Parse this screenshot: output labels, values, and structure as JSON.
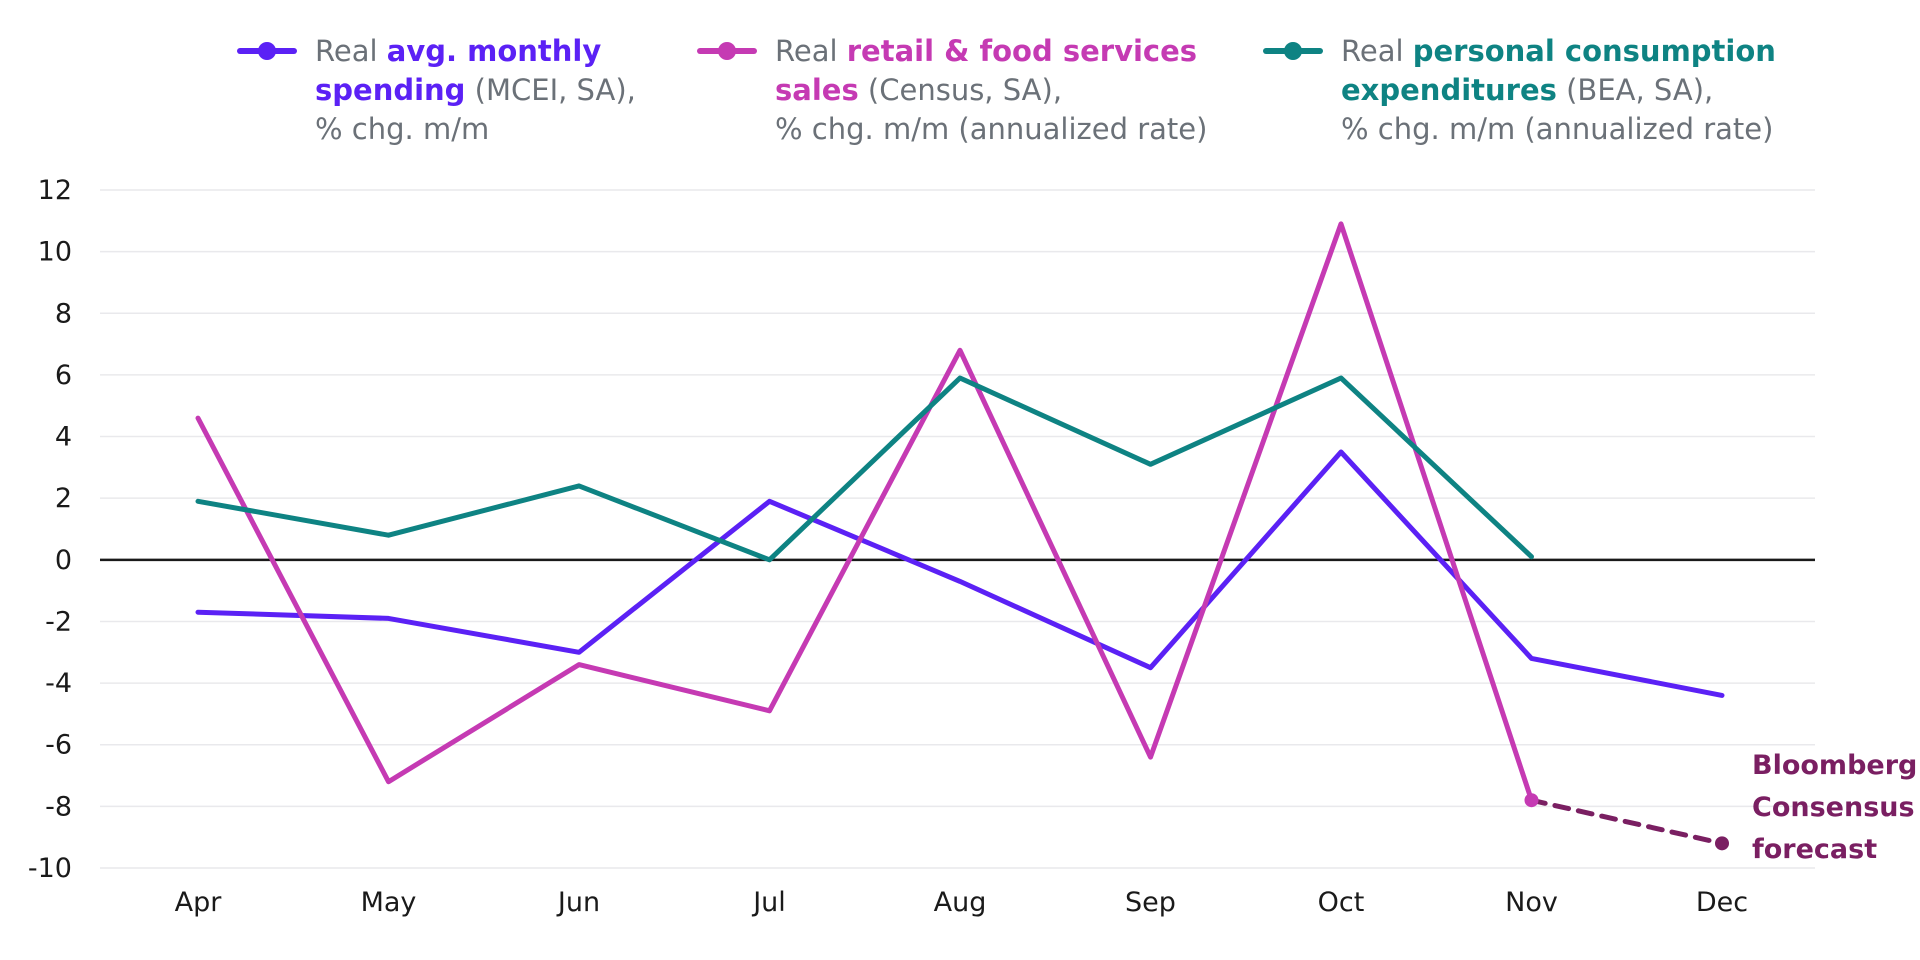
{
  "chart_data": {
    "type": "line",
    "categories": [
      "Apr",
      "May",
      "Jun",
      "Jul",
      "Aug",
      "Sep",
      "Oct",
      "Nov",
      "Dec"
    ],
    "ylim": [
      -10,
      12
    ],
    "yticks": [
      12,
      10,
      8,
      6,
      4,
      2,
      0,
      -2,
      -4,
      -6,
      -8,
      -10
    ],
    "grid": "horizontal",
    "legend_position": "top",
    "series": [
      {
        "key": "mcei",
        "color": "#5b21f5",
        "legend": {
          "lines": [
            [
              {
                "text": "Real ",
                "bold": false,
                "accent": false
              },
              {
                "text": "avg. monthly",
                "bold": true,
                "accent": true
              }
            ],
            [
              {
                "text": "spending",
                "bold": true,
                "accent": true
              },
              {
                "text": " (MCEI, SA),",
                "bold": false,
                "accent": false
              }
            ],
            [
              {
                "text": "% chg. m/m",
                "bold": false,
                "accent": false
              }
            ]
          ]
        },
        "values": [
          -1.7,
          -1.9,
          -3.0,
          1.9,
          -0.7,
          -3.5,
          3.5,
          -3.2,
          -4.4
        ]
      },
      {
        "key": "census",
        "color": "#c53ab3",
        "legend": {
          "lines": [
            [
              {
                "text": "Real ",
                "bold": false,
                "accent": false
              },
              {
                "text": "retail & food services",
                "bold": true,
                "accent": true
              }
            ],
            [
              {
                "text": "sales",
                "bold": true,
                "accent": true
              },
              {
                "text": " (Census, SA),",
                "bold": false,
                "accent": false
              }
            ],
            [
              {
                "text": "% chg. m/m (annualized rate)",
                "bold": false,
                "accent": false
              }
            ]
          ]
        },
        "values": [
          4.6,
          -7.2,
          -3.4,
          -4.9,
          6.8,
          -6.4,
          10.9,
          -7.8,
          null
        ]
      },
      {
        "key": "bea",
        "color": "#0e8383",
        "legend": {
          "lines": [
            [
              {
                "text": "Real ",
                "bold": false,
                "accent": false
              },
              {
                "text": "personal consumption",
                "bold": true,
                "accent": true
              }
            ],
            [
              {
                "text": "expenditures",
                "bold": true,
                "accent": true
              },
              {
                "text": " (BEA, SA),",
                "bold": false,
                "accent": false
              }
            ],
            [
              {
                "text": "% chg. m/m (annualized rate)",
                "bold": false,
                "accent": false
              }
            ]
          ]
        },
        "values": [
          1.9,
          0.8,
          2.4,
          0.0,
          5.9,
          3.1,
          5.9,
          0.1,
          null
        ]
      }
    ],
    "forecast": {
      "color": "#7a1f62",
      "from": {
        "x": "Nov",
        "y": -7.8
      },
      "to": {
        "x": "Dec",
        "y": -9.2
      },
      "label_lines": [
        "Bloomberg",
        "Consensus",
        "forecast"
      ]
    }
  }
}
